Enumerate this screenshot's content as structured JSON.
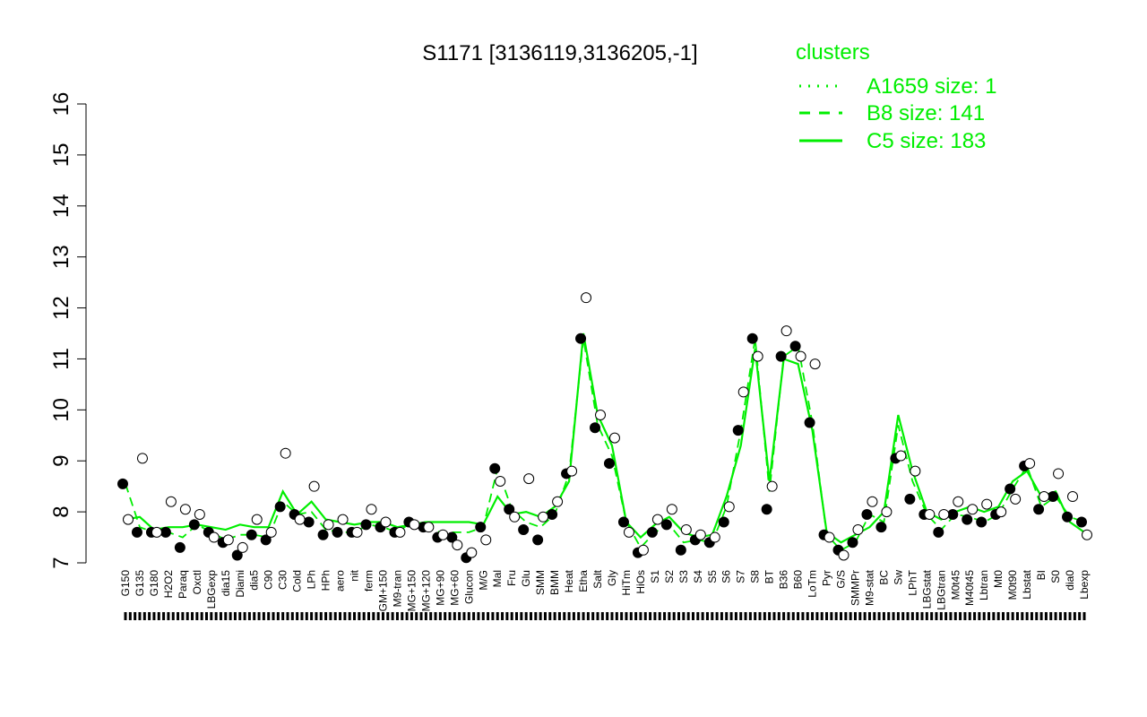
{
  "chart_data": {
    "type": "line",
    "title": "S1171 [3136119,3136205,-1]",
    "xlabel": "",
    "ylabel": "",
    "ylim": [
      7,
      16
    ],
    "yticks": [
      "7",
      "8",
      "9",
      "10",
      "11",
      "12",
      "13",
      "14",
      "15",
      "16"
    ],
    "grid": false,
    "legend": {
      "title": "clusters",
      "placement": "top-right",
      "entries": [
        {
          "label": "A1659 size: 1",
          "style": "dotted",
          "color": "#00ee00"
        },
        {
          "label": "B8 size: 141",
          "style": "dashed",
          "color": "#00ee00"
        },
        {
          "label": "C5 size: 183",
          "style": "solid",
          "color": "#00ee00"
        }
      ]
    },
    "colors": {
      "line": "#00ee00",
      "filled_point": "#000000",
      "open_point": "#ffffff",
      "rug": "#000000"
    },
    "categories": [
      "G150",
      "G135",
      "G180",
      "H2O2",
      "Paraq",
      "Oxctl",
      "LBGexp",
      "dia15",
      "Diami",
      "dia5",
      "C90",
      "C30",
      "Cold",
      "LPh",
      "HPh",
      "aero",
      "nit",
      "ferm",
      "GM+150",
      "M9-tran",
      "MG+150",
      "MG+120",
      "MG+90",
      "MG+60",
      "Glucon",
      "M/G",
      "Mal",
      "Fru",
      "Glu",
      "SMM",
      "BMM",
      "Heat",
      "Etha",
      "Salt",
      "Gly",
      "HiTm",
      "HiOs",
      "S1",
      "S2",
      "S3",
      "S4",
      "S5",
      "S6",
      "S7",
      "S8",
      "BT",
      "B36",
      "B60",
      "LoTm",
      "Pyr",
      "G/S",
      "SMMPr",
      "M9-stat",
      "BC",
      "Sw",
      "LPhT",
      "LBGstat",
      "LBGtran",
      "M0t45",
      "M40t45",
      "Lbtran",
      "Mt0",
      "M0t90",
      "Lbstat",
      "BI",
      "S0",
      "dia0",
      "Lbexp"
    ],
    "cluster_C5_line": [
      7.85,
      7.9,
      7.65,
      7.7,
      7.7,
      7.75,
      7.7,
      7.65,
      7.75,
      7.7,
      7.7,
      8.4,
      7.95,
      8.2,
      7.85,
      7.8,
      7.75,
      7.8,
      7.8,
      7.7,
      7.75,
      7.8,
      7.8,
      7.8,
      7.8,
      7.75,
      8.3,
      7.95,
      8.0,
      7.9,
      8.1,
      8.6,
      11.5,
      9.9,
      9.3,
      7.8,
      7.5,
      7.75,
      7.9,
      7.6,
      7.5,
      7.55,
      8.3,
      9.3,
      11.2,
      8.6,
      11.0,
      10.9,
      9.6,
      7.6,
      7.4,
      7.55,
      7.7,
      8.0,
      9.9,
      8.8,
      8.0,
      7.85,
      8.0,
      8.1,
      8.0,
      8.1,
      8.6,
      8.8,
      8.3,
      8.4,
      7.8,
      7.6
    ],
    "points_filled": [
      8.55,
      7.6,
      7.6,
      7.6,
      7.3,
      7.75,
      7.6,
      7.4,
      7.15,
      7.55,
      7.45,
      8.1,
      7.95,
      7.8,
      7.55,
      7.6,
      7.6,
      7.75,
      7.7,
      7.6,
      7.8,
      7.7,
      7.5,
      7.5,
      7.1,
      7.7,
      8.85,
      8.05,
      7.65,
      7.45,
      7.95,
      8.75,
      11.4,
      9.65,
      8.95,
      7.8,
      7.2,
      7.6,
      7.75,
      7.25,
      7.45,
      7.4,
      7.8,
      9.6,
      11.4,
      8.05,
      11.05,
      11.25,
      9.75,
      7.55,
      7.25,
      7.4,
      7.95,
      7.7,
      9.05,
      8.25,
      7.95,
      7.6,
      7.95,
      7.85,
      7.8,
      7.95,
      8.45,
      8.9,
      8.05,
      8.3,
      7.9,
      7.8
    ],
    "points_open": [
      7.85,
      9.05,
      7.6,
      8.2,
      8.05,
      7.95,
      7.5,
      7.45,
      7.3,
      7.85,
      7.6,
      9.15,
      7.85,
      8.5,
      7.75,
      7.85,
      7.6,
      8.05,
      7.8,
      7.6,
      7.75,
      7.7,
      7.55,
      7.35,
      7.2,
      7.45,
      8.6,
      7.9,
      8.65,
      7.9,
      8.2,
      8.8,
      12.2,
      9.9,
      9.45,
      7.6,
      7.25,
      7.85,
      8.05,
      7.65,
      7.55,
      7.5,
      8.1,
      10.35,
      11.05,
      8.5,
      11.55,
      11.05,
      10.9,
      7.5,
      7.15,
      7.65,
      8.2,
      8.0,
      9.1,
      8.8,
      7.95,
      7.95,
      8.2,
      8.05,
      8.15,
      8.0,
      8.25,
      8.95,
      8.3,
      8.75,
      8.3,
      7.55
    ]
  }
}
